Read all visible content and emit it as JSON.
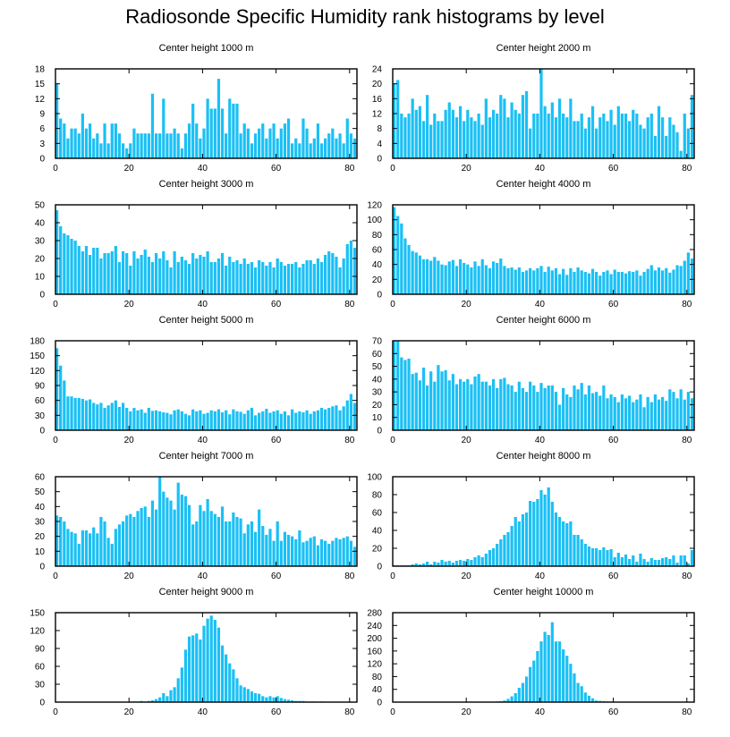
{
  "title": "Radiosonde Specific Humidity rank histograms by level",
  "colors": {
    "bar": "#1AC0F5",
    "axis": "#000000",
    "background": "#ffffff"
  },
  "chart_data": [
    {
      "type": "bar",
      "title": "Center height 1000 m",
      "xlim": [
        0,
        82
      ],
      "ylim": [
        0,
        18
      ],
      "xticks": [
        0,
        20,
        40,
        60,
        80
      ],
      "yticks": [
        0,
        3,
        6,
        9,
        12,
        15,
        18
      ],
      "values": [
        15,
        8,
        7,
        4,
        6,
        6,
        5,
        9,
        6,
        7,
        4,
        5,
        3,
        7,
        3,
        7,
        7,
        5,
        3,
        2,
        3,
        6,
        5,
        5,
        5,
        5,
        13,
        5,
        5,
        12,
        5,
        5,
        6,
        5,
        2,
        5,
        7,
        11,
        7,
        4,
        6,
        12,
        10,
        10,
        16,
        10,
        5,
        12,
        11,
        11,
        5,
        7,
        6,
        3,
        5,
        6,
        7,
        4,
        6,
        7,
        4,
        6,
        7,
        8,
        3,
        4,
        3,
        8,
        6,
        3,
        4,
        7,
        3,
        4,
        5,
        6,
        4,
        5,
        3,
        8,
        5,
        4
      ]
    },
    {
      "type": "bar",
      "title": "Center height 2000 m",
      "xlim": [
        0,
        82
      ],
      "ylim": [
        0,
        24
      ],
      "xticks": [
        0,
        20,
        40,
        60,
        80
      ],
      "yticks": [
        0,
        4,
        8,
        12,
        16,
        20,
        24
      ],
      "values": [
        20,
        21,
        12,
        11,
        12,
        16,
        13,
        14,
        10,
        17,
        9,
        12,
        10,
        10,
        13,
        15,
        13,
        11,
        14,
        10,
        13,
        11,
        10,
        12,
        9,
        16,
        11,
        13,
        12,
        17,
        16,
        11,
        15,
        13,
        12,
        17,
        18,
        8,
        12,
        12,
        24,
        14,
        12,
        15,
        11,
        16,
        12,
        11,
        16,
        10,
        10,
        12,
        8,
        11,
        14,
        8,
        11,
        12,
        10,
        13,
        9,
        14,
        12,
        12,
        10,
        13,
        12,
        9,
        8,
        11,
        12,
        6,
        14,
        11,
        6,
        11,
        9,
        7,
        2,
        12,
        8,
        17
      ]
    },
    {
      "type": "bar",
      "title": "Center height 3000 m",
      "xlim": [
        0,
        82
      ],
      "ylim": [
        0,
        50
      ],
      "xticks": [
        0,
        20,
        40,
        60,
        80
      ],
      "yticks": [
        0,
        10,
        20,
        30,
        40,
        50
      ],
      "values": [
        47,
        38,
        34,
        33,
        31,
        30,
        27,
        24,
        27,
        22,
        26,
        26,
        20,
        23,
        23,
        24,
        27,
        18,
        24,
        23,
        16,
        24,
        20,
        22,
        25,
        21,
        18,
        23,
        20,
        24,
        19,
        15,
        24,
        18,
        21,
        19,
        17,
        23,
        20,
        22,
        21,
        24,
        18,
        18,
        20,
        23,
        16,
        21,
        18,
        19,
        17,
        20,
        17,
        18,
        15,
        19,
        18,
        16,
        18,
        15,
        20,
        18,
        16,
        17,
        17,
        18,
        15,
        17,
        19,
        19,
        17,
        20,
        18,
        22,
        24,
        23,
        21,
        15,
        20,
        28,
        30,
        26
      ]
    },
    {
      "type": "bar",
      "title": "Center height 4000 m",
      "xlim": [
        0,
        82
      ],
      "ylim": [
        0,
        120
      ],
      "xticks": [
        0,
        20,
        40,
        60,
        80
      ],
      "yticks": [
        0,
        20,
        40,
        60,
        80,
        100,
        120
      ],
      "values": [
        117,
        105,
        95,
        75,
        66,
        58,
        56,
        52,
        47,
        47,
        45,
        50,
        45,
        40,
        39,
        44,
        46,
        38,
        47,
        42,
        40,
        36,
        44,
        38,
        47,
        39,
        35,
        44,
        42,
        48,
        38,
        35,
        36,
        33,
        36,
        30,
        32,
        35,
        32,
        35,
        38,
        30,
        37,
        32,
        35,
        27,
        34,
        26,
        35,
        30,
        36,
        32,
        30,
        28,
        34,
        30,
        25,
        30,
        32,
        27,
        33,
        30,
        30,
        28,
        31,
        30,
        32,
        25,
        30,
        34,
        39,
        32,
        36,
        32,
        35,
        29,
        33,
        39,
        38,
        45,
        56,
        48
      ]
    },
    {
      "type": "bar",
      "title": "Center height 5000 m",
      "xlim": [
        0,
        82
      ],
      "ylim": [
        0,
        180
      ],
      "xticks": [
        0,
        20,
        40,
        60,
        80
      ],
      "yticks": [
        0,
        30,
        60,
        90,
        120,
        150,
        180
      ],
      "values": [
        165,
        130,
        100,
        68,
        68,
        65,
        65,
        63,
        60,
        62,
        55,
        52,
        55,
        45,
        50,
        55,
        60,
        47,
        55,
        45,
        38,
        45,
        40,
        42,
        35,
        45,
        39,
        40,
        38,
        36,
        35,
        32,
        40,
        42,
        38,
        33,
        30,
        42,
        38,
        40,
        33,
        35,
        40,
        38,
        42,
        36,
        40,
        32,
        42,
        38,
        37,
        33,
        40,
        45,
        30,
        35,
        38,
        43,
        35,
        38,
        40,
        33,
        38,
        30,
        42,
        35,
        38,
        36,
        40,
        33,
        38,
        40,
        45,
        42,
        45,
        48,
        50,
        40,
        48,
        60,
        73,
        55
      ]
    },
    {
      "type": "bar",
      "title": "Center height 6000 m",
      "xlim": [
        0,
        82
      ],
      "ylim": [
        0,
        70
      ],
      "xticks": [
        0,
        20,
        40,
        60,
        80
      ],
      "yticks": [
        0,
        10,
        20,
        30,
        40,
        50,
        60,
        70
      ],
      "values": [
        72,
        70,
        57,
        55,
        56,
        44,
        45,
        39,
        49,
        35,
        46,
        38,
        51,
        46,
        47,
        39,
        44,
        36,
        40,
        38,
        40,
        36,
        42,
        44,
        38,
        38,
        35,
        40,
        33,
        40,
        41,
        36,
        35,
        30,
        38,
        33,
        30,
        38,
        35,
        30,
        37,
        33,
        35,
        35,
        30,
        20,
        33,
        28,
        26,
        35,
        32,
        37,
        28,
        35,
        29,
        30,
        27,
        35,
        25,
        28,
        26,
        22,
        28,
        25,
        27,
        22,
        24,
        28,
        18,
        26,
        22,
        28,
        24,
        26,
        23,
        32,
        30,
        25,
        32,
        24,
        30,
        25
      ]
    },
    {
      "type": "bar",
      "title": "Center height 7000 m",
      "xlim": [
        0,
        82
      ],
      "ylim": [
        0,
        60
      ],
      "xticks": [
        0,
        20,
        40,
        60,
        80
      ],
      "yticks": [
        0,
        10,
        20,
        30,
        40,
        50,
        60
      ],
      "values": [
        34,
        33,
        30,
        25,
        23,
        22,
        15,
        24,
        24,
        22,
        26,
        22,
        33,
        30,
        19,
        15,
        25,
        28,
        30,
        34,
        35,
        33,
        37,
        39,
        40,
        33,
        44,
        38,
        60,
        50,
        46,
        44,
        38,
        56,
        48,
        47,
        41,
        28,
        30,
        41,
        37,
        45,
        37,
        35,
        33,
        40,
        30,
        30,
        36,
        33,
        32,
        22,
        28,
        30,
        23,
        38,
        27,
        21,
        25,
        17,
        30,
        17,
        23,
        21,
        20,
        18,
        24,
        16,
        17,
        19,
        20,
        14,
        18,
        17,
        15,
        17,
        19,
        18,
        19,
        20,
        17,
        13
      ]
    },
    {
      "type": "bar",
      "title": "Center height 8000 m",
      "xlim": [
        0,
        82
      ],
      "ylim": [
        0,
        100
      ],
      "xticks": [
        0,
        20,
        40,
        60,
        80
      ],
      "yticks": [
        0,
        20,
        40,
        60,
        80,
        100
      ],
      "values": [
        1,
        1,
        1,
        1,
        1,
        2,
        3,
        2,
        3,
        5,
        2,
        5,
        4,
        7,
        5,
        6,
        4,
        6,
        7,
        6,
        8,
        7,
        10,
        12,
        10,
        14,
        18,
        20,
        25,
        30,
        35,
        38,
        45,
        55,
        50,
        58,
        60,
        73,
        72,
        75,
        85,
        80,
        88,
        72,
        60,
        55,
        50,
        48,
        50,
        35,
        35,
        30,
        25,
        22,
        20,
        20,
        18,
        21,
        18,
        19,
        10,
        15,
        10,
        13,
        8,
        12,
        5,
        14,
        8,
        5,
        9,
        7,
        7,
        9,
        10,
        8,
        12,
        4,
        12,
        12,
        3,
        18
      ]
    },
    {
      "type": "bar",
      "title": "Center height 9000 m",
      "xlim": [
        0,
        82
      ],
      "ylim": [
        0,
        150
      ],
      "xticks": [
        0,
        20,
        40,
        60,
        80
      ],
      "yticks": [
        0,
        30,
        60,
        90,
        120,
        150
      ],
      "values": [
        0,
        0,
        0,
        0,
        0,
        0,
        0,
        0,
        0,
        0,
        0,
        0,
        0,
        0,
        0,
        0,
        0,
        0,
        0,
        0,
        0,
        1,
        1,
        2,
        1,
        2,
        3,
        5,
        8,
        15,
        10,
        20,
        25,
        40,
        58,
        88,
        110,
        112,
        115,
        105,
        128,
        140,
        145,
        138,
        125,
        95,
        80,
        65,
        55,
        40,
        28,
        25,
        22,
        18,
        15,
        14,
        10,
        8,
        10,
        8,
        10,
        7,
        5,
        4,
        3,
        2,
        2,
        2,
        1,
        1,
        1,
        0,
        1,
        0,
        0,
        0,
        0,
        0,
        0,
        0,
        0,
        0
      ]
    },
    {
      "type": "bar",
      "title": "Center height 10000 m",
      "xlim": [
        0,
        82
      ],
      "ylim": [
        0,
        280
      ],
      "xticks": [
        0,
        20,
        40,
        60,
        80
      ],
      "yticks": [
        0,
        40,
        80,
        120,
        160,
        200,
        240,
        280
      ],
      "values": [
        0,
        0,
        0,
        0,
        0,
        0,
        0,
        0,
        0,
        0,
        0,
        0,
        0,
        0,
        0,
        0,
        0,
        0,
        0,
        0,
        0,
        0,
        0,
        0,
        0,
        0,
        1,
        1,
        2,
        3,
        5,
        10,
        18,
        28,
        45,
        60,
        80,
        110,
        130,
        160,
        190,
        220,
        210,
        250,
        190,
        190,
        165,
        145,
        120,
        90,
        60,
        50,
        30,
        20,
        12,
        5,
        4,
        3,
        2,
        2,
        1,
        1,
        0,
        0,
        0,
        0,
        0,
        0,
        0,
        0,
        0,
        0,
        0,
        0,
        0,
        0,
        0,
        0,
        0,
        0,
        0,
        0
      ]
    }
  ]
}
